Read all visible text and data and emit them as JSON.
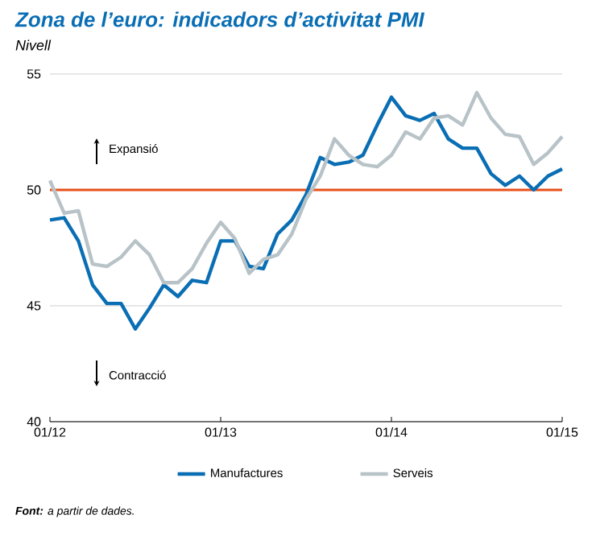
{
  "chart_data": {
    "type": "line",
    "title": "Zona de l’euro: indicadors d’activitat PMI",
    "subtitle": "Nivell",
    "annotations": [
      "Expansió",
      "Contracció",
      "**Font:** a partir de dades."
    ],
    "x": [
      "2012-01",
      "2012-02",
      "2012-03",
      "2012-04",
      "2012-05",
      "2012-06",
      "2012-07",
      "2012-08",
      "2012-09",
      "2012-10",
      "2012-11",
      "2012-12",
      "2013-01",
      "2013-02",
      "2013-03",
      "2013-04",
      "2013-05",
      "2013-06",
      "2013-07",
      "2013-08",
      "2013-09",
      "2013-10",
      "2013-11",
      "2013-12",
      "2014-01",
      "2014-02",
      "2014-03",
      "2014-04",
      "2014-05",
      "2014-06",
      "2014-07",
      "2014-08",
      "2014-09",
      "2014-10",
      "2014-11",
      "2014-12",
      "2015-01"
    ],
    "series": [
      {
        "name": "Manufactures",
        "color": "#0a6eb4",
        "values": [
          48.7,
          48.8,
          47.8,
          45.9,
          45.1,
          45.1,
          44.0,
          44.9,
          45.9,
          45.4,
          46.1,
          46.0,
          47.8,
          47.8,
          46.7,
          46.6,
          48.1,
          48.7,
          49.8,
          51.4,
          51.1,
          51.2,
          51.5,
          52.8,
          54.0,
          53.2,
          53.0,
          53.3,
          52.2,
          51.8,
          51.8,
          50.7,
          50.2,
          50.6,
          50.0,
          50.6,
          50.9
        ]
      },
      {
        "name": "Serveis",
        "color": "#b8c3c8",
        "values": [
          50.4,
          49.0,
          49.1,
          46.8,
          46.7,
          47.1,
          47.8,
          47.2,
          46.0,
          46.0,
          46.6,
          47.7,
          48.6,
          47.9,
          46.4,
          47.0,
          47.2,
          48.1,
          49.6,
          50.6,
          52.2,
          51.5,
          51.1,
          51.0,
          51.5,
          52.5,
          52.2,
          53.1,
          53.2,
          52.8,
          54.2,
          53.1,
          52.4,
          52.3,
          51.1,
          51.6,
          52.3
        ]
      }
    ],
    "xlim": [
      "2012-01",
      "2015-01"
    ],
    "xticks": [
      {
        "value": "2012-01",
        "label": "01/12"
      },
      {
        "value": "2013-01",
        "label": "01/13"
      },
      {
        "value": "2014-01",
        "label": "01/14"
      },
      {
        "value": "2015-01",
        "label": "01/15"
      }
    ],
    "ylim": [
      40,
      55
    ],
    "yticks": [
      40,
      45,
      50,
      55
    ],
    "ref_lines": [
      {
        "axis": "y",
        "value": 50,
        "color": "#e8501a"
      }
    ],
    "grid": "y",
    "legend": "bottom",
    "line_style": "solid",
    "marker": "none"
  }
}
